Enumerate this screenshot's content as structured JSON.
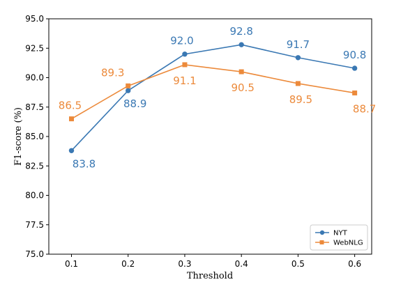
{
  "chart_data": {
    "type": "line",
    "title": "",
    "xlabel": "Threshold",
    "ylabel": "F1-score (%)",
    "x": [
      0.1,
      0.2,
      0.3,
      0.4,
      0.5,
      0.6
    ],
    "x_tick_labels": [
      "0.1",
      "0.2",
      "0.3",
      "0.4",
      "0.5",
      "0.6"
    ],
    "xlim": [
      0.06,
      0.63
    ],
    "ylim": [
      75.0,
      95.0
    ],
    "y_ticks": [
      75.0,
      77.5,
      80.0,
      82.5,
      85.0,
      87.5,
      90.0,
      92.5,
      95.0
    ],
    "y_tick_labels": [
      "75.0",
      "77.5",
      "80.0",
      "82.5",
      "85.0",
      "87.5",
      "90.0",
      "92.5",
      "95.0"
    ],
    "grid": false,
    "legend_position": "bottom-right",
    "series": [
      {
        "name": "NYT",
        "color": "#3a78b3",
        "marker": "circle",
        "values": [
          83.8,
          88.9,
          92.0,
          92.8,
          91.7,
          90.8
        ],
        "labels": [
          "83.8",
          "88.9",
          "92.0",
          "92.8",
          "91.7",
          "90.8"
        ]
      },
      {
        "name": "WebNLG",
        "color": "#ec8a3b",
        "marker": "square",
        "values": [
          86.5,
          89.3,
          91.1,
          90.5,
          89.5,
          88.7
        ],
        "labels": [
          "86.5",
          "89.3",
          "91.1",
          "90.5",
          "89.5",
          "88.7"
        ]
      }
    ]
  }
}
